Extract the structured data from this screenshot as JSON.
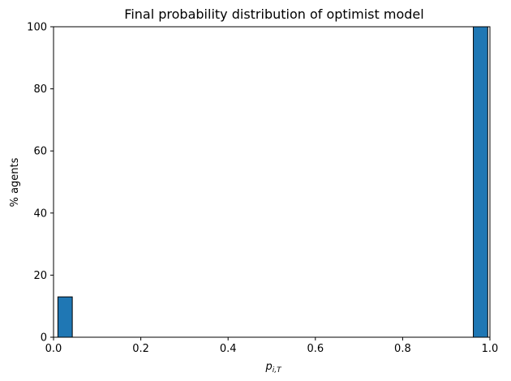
{
  "chart_data": {
    "type": "bar",
    "title": "Final probability distribution of optimist model",
    "xlabel_main": "p",
    "xlabel_sub": "i,T",
    "ylabel": "% agents",
    "xlim": [
      0,
      1
    ],
    "ylim": [
      0,
      100
    ],
    "x_ticks": [
      "0.0",
      "0.2",
      "0.4",
      "0.6",
      "0.8",
      "1.0"
    ],
    "y_ticks": [
      "0",
      "20",
      "40",
      "60",
      "80",
      "100"
    ],
    "bars": [
      {
        "x0": 0.01,
        "x1": 0.043,
        "value": 13
      },
      {
        "x0": 0.962,
        "x1": 0.995,
        "value": 100
      }
    ],
    "grid": false,
    "bar_color": "#1f77b4",
    "edge_color": "#000000"
  }
}
